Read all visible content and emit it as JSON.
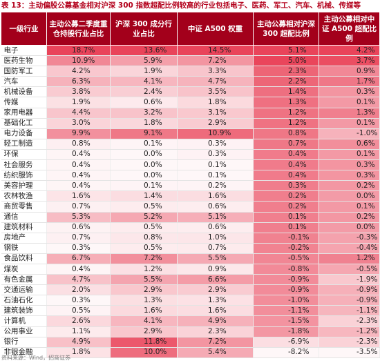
{
  "caption": "表 13：主动偏股公募基金相对沪深 300 指数超配比例较高的行业包括电子、医药、军工、汽车、机械、传媒等",
  "headers": [
    "一级行业",
    "主动公募二季度重仓持股行业占比",
    "沪深 300 成分行业占比",
    "中证 A500 权重",
    "主动公募相对沪深 300 超配比例",
    "主动公募相对中证 A500 超配比例"
  ],
  "rows": [
    [
      "电子",
      "18.7%",
      "13.6%",
      "14.5%",
      "5.1%",
      "4.2%"
    ],
    [
      "医药生物",
      "10.9%",
      "5.9%",
      "7.2%",
      "5.0%",
      "3.7%"
    ],
    [
      "国防军工",
      "4.2%",
      "1.9%",
      "3.3%",
      "2.3%",
      "0.9%"
    ],
    [
      "汽车",
      "6.3%",
      "4.1%",
      "4.7%",
      "2.2%",
      "1.7%"
    ],
    [
      "机械设备",
      "3.8%",
      "2.4%",
      "3.5%",
      "1.4%",
      "0.3%"
    ],
    [
      "传媒",
      "1.9%",
      "0.6%",
      "1.8%",
      "1.3%",
      "0.1%"
    ],
    [
      "家用电器",
      "4.4%",
      "3.2%",
      "3.1%",
      "1.2%",
      "1.3%"
    ],
    [
      "基础化工",
      "3.0%",
      "1.8%",
      "2.9%",
      "1.2%",
      "0.1%"
    ],
    [
      "电力设备",
      "9.9%",
      "9.1%",
      "10.9%",
      "0.8%",
      "-1.0%"
    ],
    [
      "轻工制造",
      "0.8%",
      "0.1%",
      "0.3%",
      "0.7%",
      "0.6%"
    ],
    [
      "环保",
      "0.4%",
      "0.0%",
      "0.3%",
      "0.4%",
      "0.1%"
    ],
    [
      "社会服务",
      "0.4%",
      "0.0%",
      "0.1%",
      "0.4%",
      "0.3%"
    ],
    [
      "纺织服饰",
      "0.4%",
      "0.0%",
      "0.1%",
      "0.4%",
      "0.3%"
    ],
    [
      "美容护理",
      "0.4%",
      "0.1%",
      "0.2%",
      "0.3%",
      "0.2%"
    ],
    [
      "农林牧渔",
      "1.6%",
      "1.4%",
      "1.6%",
      "0.2%",
      "0.0%"
    ],
    [
      "商贸零售",
      "0.7%",
      "0.5%",
      "0.6%",
      "0.2%",
      "0.1%"
    ],
    [
      "通信",
      "5.3%",
      "5.2%",
      "5.1%",
      "0.1%",
      "0.2%"
    ],
    [
      "建筑材料",
      "0.6%",
      "0.5%",
      "0.6%",
      "0.1%",
      "0.0%"
    ],
    [
      "房地产",
      "0.7%",
      "0.8%",
      "1.0%",
      "-0.1%",
      "-0.3%"
    ],
    [
      "钢铁",
      "0.3%",
      "0.5%",
      "0.7%",
      "-0.2%",
      "-0.4%"
    ],
    [
      "食品饮料",
      "6.7%",
      "7.2%",
      "5.5%",
      "-0.5%",
      "1.2%"
    ],
    [
      "煤炭",
      "0.4%",
      "1.2%",
      "0.9%",
      "-0.8%",
      "-0.5%"
    ],
    [
      "有色金属",
      "4.7%",
      "5.5%",
      "6.6%",
      "-0.9%",
      "-1.9%"
    ],
    [
      "交通运输",
      "2.0%",
      "2.9%",
      "2.9%",
      "-0.9%",
      "-0.9%"
    ],
    [
      "石油石化",
      "0.3%",
      "1.3%",
      "1.3%",
      "-1.0%",
      "-0.9%"
    ],
    [
      "建筑装饰",
      "0.5%",
      "1.6%",
      "1.6%",
      "-1.1%",
      "-1.1%"
    ],
    [
      "计算机",
      "2.6%",
      "4.1%",
      "4.9%",
      "-1.5%",
      "-2.3%"
    ],
    [
      "公用事业",
      "1.1%",
      "2.9%",
      "2.3%",
      "-1.8%",
      "-1.2%"
    ],
    [
      "银行",
      "4.9%",
      "11.8%",
      "7.2%",
      "-6.9%",
      "-2.3%"
    ],
    [
      "非银金融",
      "1.8%",
      "10.0%",
      "5.4%",
      "-8.2%",
      "-3.5%"
    ]
  ],
  "colors": {
    "header_bg": "#a3001b",
    "header_text": "#ffffff",
    "caption_text": "#b3001b",
    "heat_base": "#e8384f"
  },
  "footer": "资料来源：Wind，招商证券"
}
